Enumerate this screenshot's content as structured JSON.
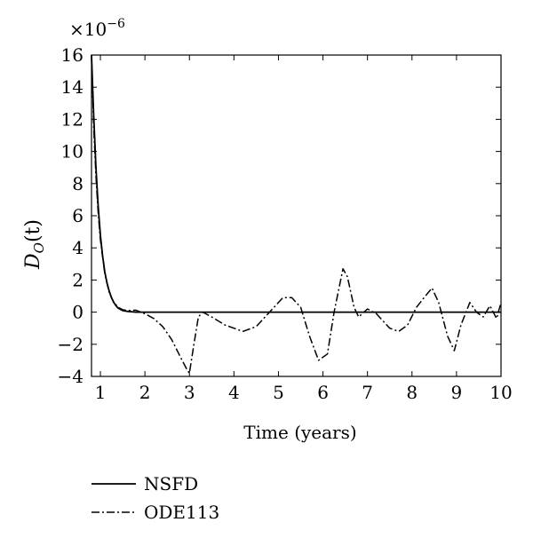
{
  "chart_data": {
    "type": "line",
    "title": "",
    "xlabel": "Time (years)",
    "ylabel_main": "D",
    "ylabel_sub": "O",
    "ylabel_arg": "(t)",
    "y_multiplier_base": "×10",
    "y_multiplier_exp": "−6",
    "xlim": [
      0.8,
      10
    ],
    "ylim": [
      -4,
      16
    ],
    "x_ticks": [
      1,
      2,
      3,
      4,
      5,
      6,
      7,
      8,
      9,
      10
    ],
    "y_ticks": [
      -4,
      -2,
      0,
      2,
      4,
      6,
      8,
      10,
      12,
      14,
      16
    ],
    "grid": false,
    "legend_position": "below",
    "series": [
      {
        "name": "NSFD",
        "style": "solid",
        "color": "#000000",
        "points": [
          [
            0.8,
            16
          ],
          [
            0.85,
            12.2
          ],
          [
            0.9,
            9.0
          ],
          [
            0.95,
            6.6
          ],
          [
            1.0,
            4.8
          ],
          [
            1.05,
            3.5
          ],
          [
            1.1,
            2.5
          ],
          [
            1.15,
            1.8
          ],
          [
            1.2,
            1.3
          ],
          [
            1.25,
            0.9
          ],
          [
            1.3,
            0.6
          ],
          [
            1.35,
            0.4
          ],
          [
            1.4,
            0.25
          ],
          [
            1.5,
            0.1
          ],
          [
            1.6,
            0.05
          ],
          [
            1.8,
            0.0
          ],
          [
            2.0,
            0.0
          ],
          [
            3,
            0.0
          ],
          [
            4,
            0.0
          ],
          [
            5,
            0.0
          ],
          [
            6,
            0.0
          ],
          [
            7,
            0.0
          ],
          [
            8,
            0.0
          ],
          [
            9,
            0.0
          ],
          [
            10,
            0.0
          ]
        ]
      },
      {
        "name": "ODE113",
        "style": "dashdot",
        "color": "#000000",
        "points": [
          [
            0.8,
            16
          ],
          [
            0.85,
            11.5
          ],
          [
            0.9,
            8.5
          ],
          [
            0.95,
            6.2
          ],
          [
            1.0,
            4.5
          ],
          [
            1.1,
            2.4
          ],
          [
            1.2,
            1.2
          ],
          [
            1.3,
            0.6
          ],
          [
            1.4,
            0.3
          ],
          [
            1.5,
            0.15
          ],
          [
            1.6,
            0.1
          ],
          [
            1.8,
            0.12
          ],
          [
            2.0,
            -0.1
          ],
          [
            2.2,
            -0.4
          ],
          [
            2.4,
            -0.9
          ],
          [
            2.6,
            -1.7
          ],
          [
            2.8,
            -2.8
          ],
          [
            2.95,
            -3.6
          ],
          [
            3.0,
            -3.8
          ],
          [
            3.1,
            -2.0
          ],
          [
            3.2,
            -0.3
          ],
          [
            3.3,
            0.0
          ],
          [
            3.5,
            -0.3
          ],
          [
            3.8,
            -0.8
          ],
          [
            4.2,
            -1.2
          ],
          [
            4.5,
            -0.9
          ],
          [
            4.8,
            0.0
          ],
          [
            5.1,
            0.9
          ],
          [
            5.3,
            0.9
          ],
          [
            5.5,
            0.3
          ],
          [
            5.7,
            -1.5
          ],
          [
            5.9,
            -3.0
          ],
          [
            6.1,
            -2.6
          ],
          [
            6.25,
            0.0
          ],
          [
            6.45,
            2.7
          ],
          [
            6.55,
            2.2
          ],
          [
            6.7,
            0.3
          ],
          [
            6.8,
            -0.3
          ],
          [
            7.0,
            0.2
          ],
          [
            7.2,
            -0.1
          ],
          [
            7.5,
            -1.0
          ],
          [
            7.7,
            -1.2
          ],
          [
            7.9,
            -0.8
          ],
          [
            8.1,
            0.3
          ],
          [
            8.3,
            1.0
          ],
          [
            8.45,
            1.5
          ],
          [
            8.6,
            0.6
          ],
          [
            8.8,
            -1.5
          ],
          [
            8.95,
            -2.4
          ],
          [
            9.1,
            -0.8
          ],
          [
            9.3,
            0.6
          ],
          [
            9.45,
            0.0
          ],
          [
            9.6,
            -0.3
          ],
          [
            9.75,
            0.4
          ],
          [
            9.9,
            -0.4
          ],
          [
            10.0,
            0.6
          ]
        ]
      }
    ]
  }
}
